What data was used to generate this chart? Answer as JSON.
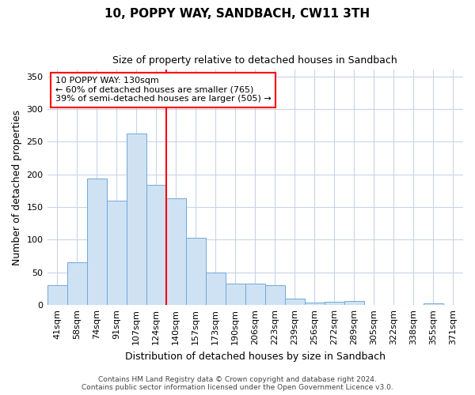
{
  "title": "10, POPPY WAY, SANDBACH, CW11 3TH",
  "subtitle": "Size of property relative to detached houses in Sandbach",
  "xlabel": "Distribution of detached houses by size in Sandbach",
  "ylabel": "Number of detached properties",
  "bar_labels": [
    "41sqm",
    "58sqm",
    "74sqm",
    "91sqm",
    "107sqm",
    "124sqm",
    "140sqm",
    "157sqm",
    "173sqm",
    "190sqm",
    "206sqm",
    "223sqm",
    "239sqm",
    "256sqm",
    "272sqm",
    "289sqm",
    "305sqm",
    "322sqm",
    "338sqm",
    "355sqm",
    "371sqm"
  ],
  "bar_values": [
    30,
    65,
    194,
    160,
    262,
    184,
    163,
    103,
    50,
    33,
    33,
    30,
    10,
    4,
    5,
    6,
    0,
    0,
    0,
    3,
    0
  ],
  "bar_color": "#cfe2f3",
  "bar_edge_color": "#6fa8dc",
  "vline_x": 5.5,
  "vline_color": "red",
  "ylim": [
    0,
    360
  ],
  "yticks": [
    0,
    50,
    100,
    150,
    200,
    250,
    300,
    350
  ],
  "annotation_title": "10 POPPY WAY: 130sqm",
  "annotation_line1": "← 60% of detached houses are smaller (765)",
  "annotation_line2": "39% of semi-detached houses are larger (505) →",
  "annotation_box_color": "#ffffff",
  "annotation_box_edge": "red",
  "footer_line1": "Contains HM Land Registry data © Crown copyright and database right 2024.",
  "footer_line2": "Contains public sector information licensed under the Open Government Licence v3.0.",
  "background_color": "#ffffff",
  "grid_color": "#c9d4e8",
  "title_fontsize": 11,
  "subtitle_fontsize": 9,
  "ylabel_fontsize": 9,
  "xlabel_fontsize": 9,
  "tick_fontsize": 8,
  "ann_fontsize": 8,
  "footer_fontsize": 6.5
}
